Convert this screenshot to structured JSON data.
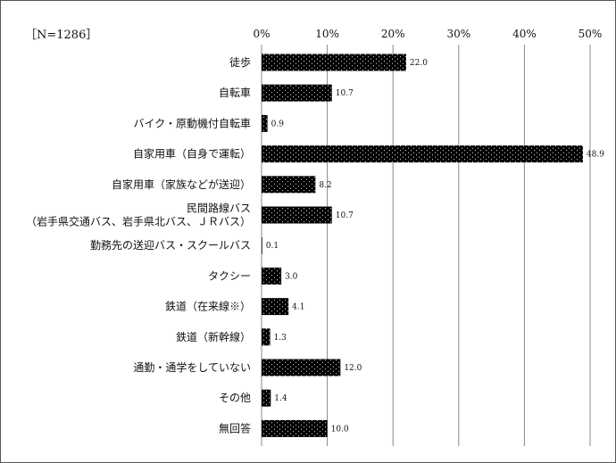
{
  "sample_label": "［N=1286］",
  "chart_data": {
    "type": "bar",
    "orientation": "horizontal",
    "categories": [
      [
        "徒歩"
      ],
      [
        "自転車"
      ],
      [
        "バイク・原動機付自転車"
      ],
      [
        "自家用車（自身で運転）"
      ],
      [
        "自家用車（家族などが送迎）"
      ],
      [
        "民間路線バス",
        "（岩手県交通バス、岩手県北バス、ＪＲバス）"
      ],
      [
        "勤務先の送迎バス・スクールバス"
      ],
      [
        "タクシー"
      ],
      [
        "鉄道（在来線※）"
      ],
      [
        "鉄道（新幹線）"
      ],
      [
        "通勤・通学をしていない"
      ],
      [
        "その他"
      ],
      [
        "無回答"
      ]
    ],
    "values": [
      22.0,
      10.7,
      0.9,
      48.9,
      8.2,
      10.7,
      0.1,
      3.0,
      4.1,
      1.3,
      12.0,
      1.4,
      10.0
    ],
    "value_labels": [
      "22.0",
      "10.7",
      "0.9",
      "48.9",
      "8.2",
      "10.7",
      "0.1",
      "3.0",
      "4.1",
      "1.3",
      "12.0",
      "1.4",
      "10.0"
    ],
    "xlim": [
      0,
      50
    ],
    "ticks": [
      "0%",
      "10%",
      "20%",
      "30%",
      "40%",
      "50%"
    ],
    "tick_values": [
      0,
      10,
      20,
      30,
      40,
      50
    ],
    "grid": true,
    "legend": "none",
    "colors": {
      "bar": "#000000",
      "dots": "#ffffff",
      "grid": "#888888"
    }
  }
}
